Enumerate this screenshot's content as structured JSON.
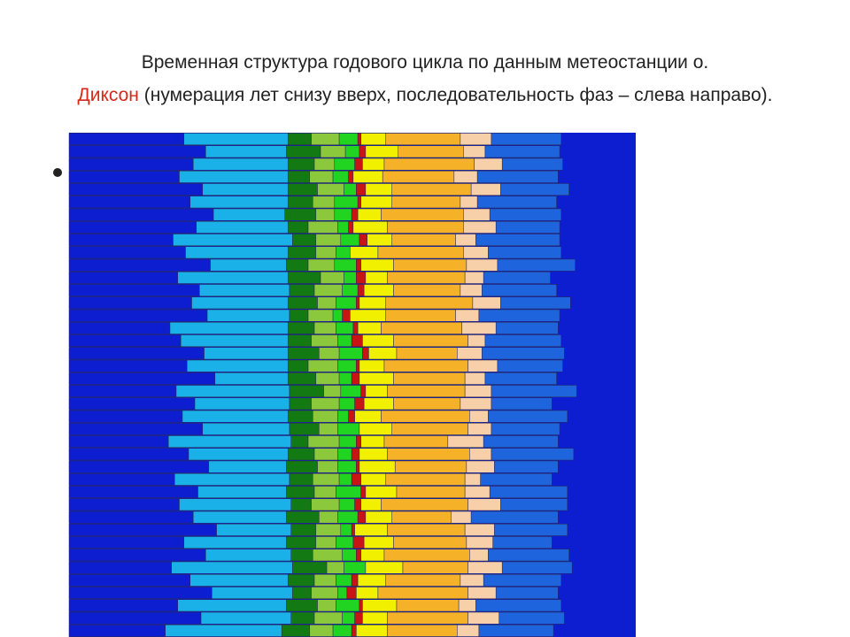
{
  "chart_data": {
    "type": "stacked-barh",
    "title": [
      "Временная структура годового цикла по данным метеостанции о.",
      "Диксон",
      "(нумерация лет снизу вверх, последовательность фаз – слева направо)."
    ],
    "xlim": [
      0,
      365
    ],
    "series": [
      {
        "color": "#0c1ecf",
        "values": [
          62,
          85,
          70,
          92,
          78,
          66,
          88,
          74,
          95,
          80,
          71,
          83,
          68,
          90,
          77,
          64,
          86,
          73,
          81,
          69,
          94,
          76,
          87,
          72,
          65,
          89,
          79,
          84,
          70,
          91,
          75,
          67,
          82,
          93,
          78,
          86,
          71,
          80,
          88,
          74
        ]
      },
      {
        "color": "#1ab0e8",
        "values": [
          75,
          58,
          70,
          52,
          63,
          78,
          55,
          66,
          48,
          60,
          72,
          57,
          74,
          50,
          64,
          79,
          56,
          68,
          61,
          73,
          47,
          65,
          54,
          69,
          76,
          53,
          62,
          58,
          71,
          49,
          66,
          77,
          59,
          46,
          63,
          55,
          70,
          61,
          52,
          67
        ]
      },
      {
        "color": "#137a13",
        "values": [
          18,
          15,
          20,
          12,
          17,
          22,
          14,
          19,
          16,
          21,
          13,
          18,
          15,
          20,
          17,
          11,
          19,
          16,
          14,
          22,
          18,
          13,
          20,
          15,
          17,
          12,
          19,
          16,
          21,
          14,
          18,
          15,
          13,
          20,
          16,
          19,
          14,
          17,
          22,
          15
        ]
      },
      {
        "color": "#8cc83c",
        "values": [
          15,
          18,
          12,
          17,
          14,
          11,
          19,
          13,
          16,
          12,
          18,
          14,
          17,
          13,
          15,
          20,
          12,
          16,
          18,
          11,
          15,
          19,
          13,
          17,
          14,
          16,
          12,
          18,
          15,
          17,
          13,
          16,
          19,
          12,
          14,
          17,
          15,
          13,
          16,
          18
        ]
      },
      {
        "color": "#22d422",
        "values": [
          12,
          8,
          15,
          6,
          10,
          14,
          9,
          11,
          7,
          13,
          10,
          16,
          8,
          12,
          9,
          11,
          14,
          7,
          10,
          13,
          8,
          12,
          15,
          9,
          11,
          6,
          13,
          10,
          8,
          14,
          9,
          12,
          7,
          11,
          15,
          8,
          10,
          13,
          9,
          12
        ]
      },
      {
        "color": "#c81414",
        "values": [
          3,
          5,
          2,
          6,
          4,
          0,
          3,
          7,
          2,
          5,
          4,
          3,
          6,
          2,
          5,
          3,
          0,
          4,
          6,
          3,
          5,
          2,
          4,
          7,
          3,
          5,
          2,
          4,
          6,
          3,
          0,
          5,
          3,
          4,
          2,
          6,
          3,
          5,
          4,
          2
        ]
      },
      {
        "color": "#f0f000",
        "values": [
          20,
          16,
          22,
          14,
          18,
          24,
          15,
          19,
          21,
          17,
          13,
          20,
          16,
          23,
          18,
          15,
          21,
          17,
          19,
          14,
          22,
          16,
          18,
          20,
          15,
          23,
          17,
          19,
          14,
          21,
          18,
          16,
          22,
          15,
          20,
          17,
          19,
          14,
          21,
          16
        ]
      },
      {
        "color": "#f5b128",
        "values": [
          45,
          52,
          40,
          58,
          48,
          42,
          55,
          47,
          50,
          38,
          56,
          44,
          51,
          46,
          53,
          41,
          49,
          57,
          43,
          50,
          46,
          54,
          39,
          48,
          52,
          45,
          56,
          43,
          50,
          47,
          55,
          41,
          49,
          53,
          44,
          51,
          46,
          58,
          42,
          48
        ]
      },
      {
        "color": "#f7cfa8",
        "values": [
          14,
          20,
          11,
          18,
          15,
          22,
          12,
          17,
          19,
          13,
          21,
          16,
          10,
          18,
          14,
          23,
          15,
          12,
          20,
          17,
          13,
          19,
          16,
          11,
          22,
          15,
          18,
          14,
          12,
          20,
          16,
          13,
          21,
          17,
          11,
          19,
          15,
          18,
          14,
          20
        ]
      },
      {
        "color": "#1e64dc",
        "values": [
          48,
          42,
          55,
          40,
          50,
          45,
          52,
          38,
          47,
          56,
          43,
          50,
          46,
          41,
          53,
          48,
          44,
          51,
          39,
          55,
          46,
          42,
          53,
          49,
          40,
          52,
          45,
          48,
          43,
          50,
          47,
          54,
          41,
          46,
          51,
          44,
          52,
          39,
          48,
          45
        ]
      }
    ]
  }
}
